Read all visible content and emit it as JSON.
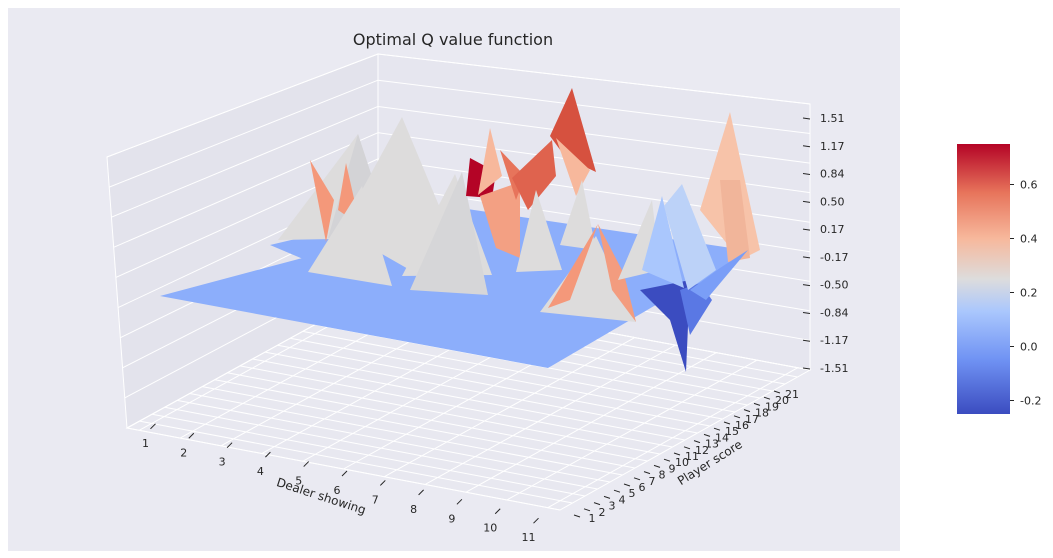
{
  "chart_data": {
    "type": "surface3d",
    "title": "Optimal Q value function",
    "xlabel": "Dealer showing",
    "ylabel": "Player score",
    "x_ticks": [
      "1",
      "2",
      "3",
      "4",
      "5",
      "6",
      "7",
      "8",
      "9",
      "10",
      "11"
    ],
    "y_ticks": [
      "1",
      "2",
      "3",
      "4",
      "5",
      "6",
      "7",
      "8",
      "9",
      "10",
      "11",
      "12",
      "13",
      "14",
      "15",
      "16",
      "17",
      "18",
      "19",
      "20",
      "21"
    ],
    "z_ticks": [
      "-1.51",
      "-1.17",
      "-0.84",
      "-0.50",
      "-0.17",
      "0.17",
      "0.50",
      "0.84",
      "1.17",
      "1.51"
    ],
    "zlim": [
      -1.51,
      1.51
    ],
    "colorbar": {
      "ticks": [
        "-0.2",
        "0.0",
        "0.2",
        "0.4",
        "0.6"
      ],
      "range": [
        -0.25,
        0.75
      ],
      "colormap": "coolwarm",
      "colors": [
        "#3b4cc0",
        "#6f92f3",
        "#aac7fd",
        "#dddcdc",
        "#f7b89c",
        "#e7745b",
        "#b40426"
      ]
    },
    "baseline_value": 0.0,
    "peaks": [
      {
        "dealer": 5,
        "player": 14,
        "value": 0.17
      },
      {
        "dealer": 6,
        "player": 14,
        "value": 0.17
      },
      {
        "dealer": 4,
        "player": 16,
        "value": 0.17
      },
      {
        "dealer": 4,
        "player": 17,
        "value": 0.45
      },
      {
        "dealer": 5,
        "player": 17,
        "value": 0.45
      },
      {
        "dealer": 7,
        "player": 15,
        "value": 0.17
      },
      {
        "dealer": 6,
        "player": 18,
        "value": 0.75
      },
      {
        "dealer": 7,
        "player": 18,
        "value": 0.4
      },
      {
        "dealer": 7,
        "player": 17,
        "value": 0.4
      },
      {
        "dealer": 8,
        "player": 19,
        "value": 0.65
      },
      {
        "dealer": 8,
        "player": 18,
        "value": 0.55
      },
      {
        "dealer": 9,
        "player": 15,
        "value": 0.45
      },
      {
        "dealer": 10,
        "player": 18,
        "value": 0.0
      },
      {
        "dealer": 10,
        "player": 19,
        "value": -0.2
      },
      {
        "dealer": 11,
        "player": 20,
        "value": 0.35
      },
      {
        "dealer": 11,
        "player": 19,
        "value": 0.1
      },
      {
        "dealer": 9,
        "player": 12,
        "value": 0.17
      }
    ]
  }
}
